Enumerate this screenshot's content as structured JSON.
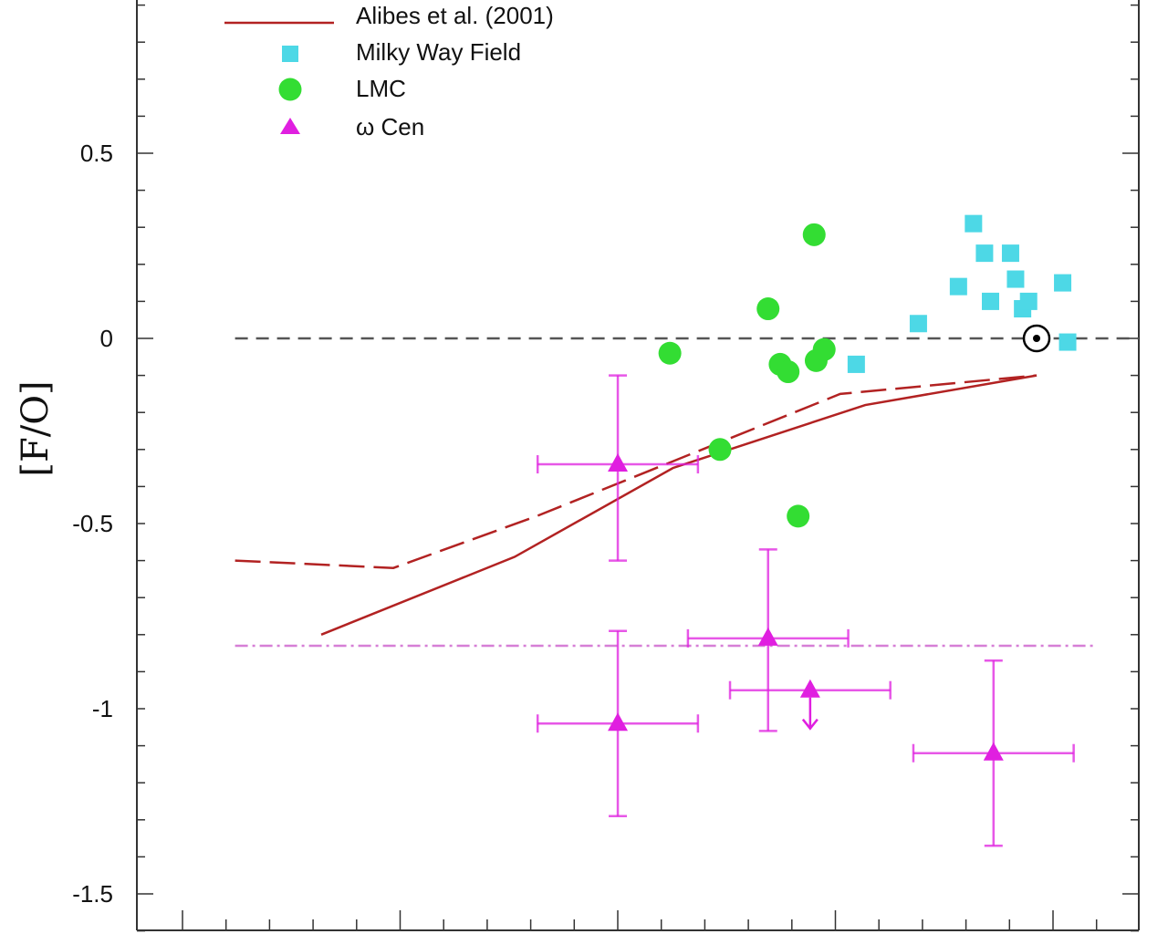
{
  "chart_data": {
    "type": "scatter",
    "title": "",
    "xlabel": "",
    "ylabel": "[F/O]",
    "ylim": [
      -1.6,
      0.9
    ],
    "xlim": [
      0,
      1
    ],
    "y_ticks": [
      0.5,
      0,
      -0.5,
      -1,
      -1.5
    ],
    "y_tick_labels": [
      "0.5",
      "0",
      "-0.5",
      "-1",
      "-1.5"
    ],
    "legend_position": "top-left",
    "legend": [
      {
        "label": "Alibes et al. (2001)",
        "kind": "line",
        "color": "#b22222"
      },
      {
        "label": "Milky Way Field",
        "kind": "square",
        "color": "#4dd8e6"
      },
      {
        "label": "LMC",
        "kind": "circle",
        "color": "#33dd33"
      },
      {
        "label": "ω Cen",
        "kind": "triangle",
        "color": "#e01fe0"
      }
    ],
    "series": [
      {
        "name": "Alibes et al. (2001)",
        "style": "solid",
        "color": "#b22222",
        "points": [
          [
            0.184,
            -0.8
          ],
          [
            0.377,
            -0.59
          ],
          [
            0.535,
            -0.35
          ],
          [
            0.727,
            -0.18
          ],
          [
            0.898,
            -0.1
          ]
        ]
      },
      {
        "name": "Alibes et al. (2001)",
        "style": "dashed",
        "color": "#b22222",
        "points": [
          [
            0.098,
            -0.6
          ],
          [
            0.256,
            -0.62
          ],
          [
            0.399,
            -0.48
          ],
          [
            0.702,
            -0.15
          ],
          [
            0.898,
            -0.1
          ]
        ]
      },
      {
        "name": "Milky Way Field",
        "marker": "square",
        "color": "#4dd8e6",
        "points": [
          [
            0.718,
            -0.07
          ],
          [
            0.78,
            0.04
          ],
          [
            0.82,
            0.14
          ],
          [
            0.835,
            0.31
          ],
          [
            0.846,
            0.23
          ],
          [
            0.852,
            0.1
          ],
          [
            0.872,
            0.23
          ],
          [
            0.877,
            0.16
          ],
          [
            0.884,
            0.08
          ],
          [
            0.89,
            0.1
          ],
          [
            0.924,
            0.15
          ],
          [
            0.929,
            -0.01
          ]
        ]
      },
      {
        "name": "LMC",
        "marker": "circle",
        "color": "#33dd33",
        "points": [
          [
            0.532,
            -0.04
          ],
          [
            0.582,
            -0.3
          ],
          [
            0.63,
            0.08
          ],
          [
            0.642,
            -0.07
          ],
          [
            0.65,
            -0.09
          ],
          [
            0.66,
            -0.48
          ],
          [
            0.676,
            0.28
          ],
          [
            0.678,
            -0.06
          ],
          [
            0.686,
            -0.03
          ]
        ]
      },
      {
        "name": "ω Cen",
        "marker": "triangle",
        "color": "#e01fe0",
        "points": [
          {
            "x": 0.48,
            "y": -0.34,
            "xerr": [
              0.08,
              0.08
            ],
            "yerr": [
              0.26,
              0.24
            ]
          },
          {
            "x": 0.48,
            "y": -1.04,
            "xerr": [
              0.08,
              0.08
            ],
            "yerr": [
              0.25,
              0.25
            ]
          },
          {
            "x": 0.63,
            "y": -0.81,
            "xerr": [
              0.08,
              0.08
            ],
            "yerr": [
              0.25,
              0.24
            ]
          },
          {
            "x": 0.672,
            "y": -0.95,
            "xerr": [
              0.08,
              0.08
            ],
            "yerr": [
              0.0,
              0.0
            ],
            "upper_limit": true
          },
          {
            "x": 0.855,
            "y": -1.12,
            "xerr": [
              0.08,
              0.08
            ],
            "yerr": [
              0.25,
              0.25
            ]
          }
        ]
      }
    ],
    "reference_lines": [
      {
        "y": 0,
        "style": "dashed",
        "color": "#555555",
        "x_range": [
          0.098,
          1.0
        ]
      },
      {
        "y": -0.83,
        "style": "dash-dot",
        "color": "#d67fd6",
        "x_range": [
          0.098,
          0.956
        ]
      }
    ],
    "solar_symbol": {
      "x": 0.898,
      "y": 0
    }
  }
}
